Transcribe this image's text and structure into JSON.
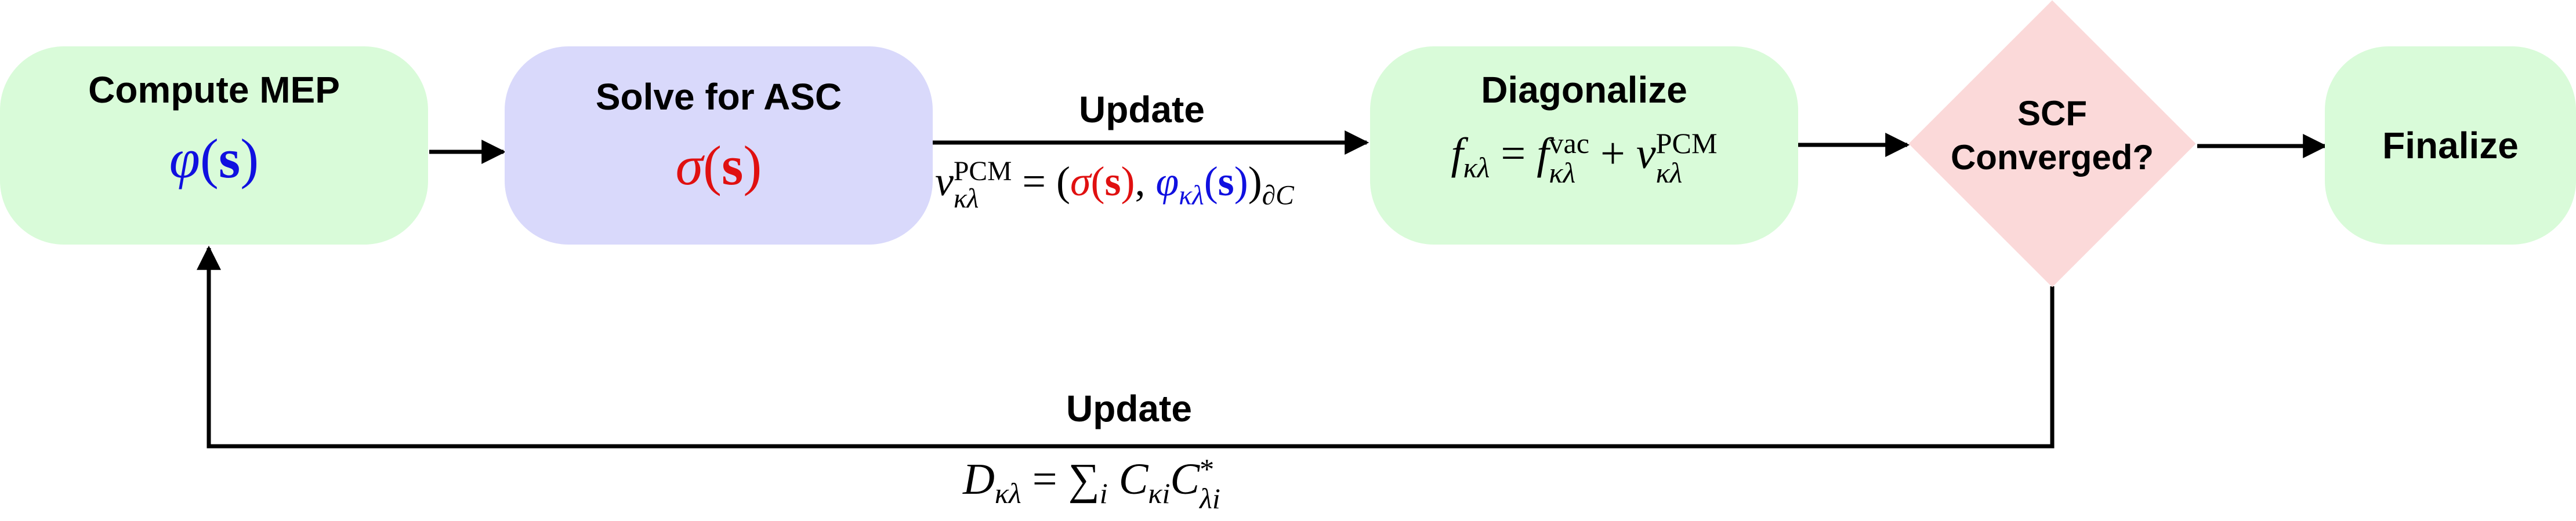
{
  "nodes": {
    "compute_mep": {
      "title": "Compute MEP",
      "formula": {
        "phi": "φ",
        "open": "(",
        "s": "s",
        "close": ")"
      },
      "fill": "#d9fbd9"
    },
    "solve_asc": {
      "title": "Solve for ASC",
      "formula": {
        "sigma": "σ",
        "open": "(",
        "s": "s",
        "close": ")"
      },
      "fill": "#d9d9fb"
    },
    "diagonalize": {
      "title": "Diagonalize",
      "formula": {
        "f": "f",
        "sub_kl": "κλ",
        "eq": " = ",
        "f2": "f",
        "sup_vac": "vac",
        "sub_kl2": "κλ",
        "plus": " + ",
        "v": "v",
        "sup_pcm": "PCM",
        "sub_kl3": "κλ"
      },
      "fill": "#d9fbd9"
    },
    "scf_converged": {
      "title_line1": "SCF",
      "title_line2": "Converged?",
      "fill": "#fbd9d9"
    },
    "finalize": {
      "title": "Finalize",
      "fill": "#d9fbd9"
    }
  },
  "edges": {
    "update_top": {
      "label": "Update",
      "formula": {
        "v": "v",
        "sup_pcm": "PCM",
        "sub_kl": "κλ",
        "eq": " = (",
        "sigma": "σ",
        "s1_open": "(",
        "s1": "s",
        "s1_close": ")",
        "comma": ", ",
        "phi": "φ",
        "sub_kl2": "κλ",
        "s2_open": "(",
        "s2": "s",
        "s2_close": ")",
        "close": ")",
        "sub_dc": "∂C"
      }
    },
    "update_bottom": {
      "label": "Update",
      "formula": {
        "D": "D",
        "sub_kl": "κλ",
        "eq": " = ",
        "sum": "∑",
        "sub_i": "i",
        "C1": " C",
        "sub_ki": "κi",
        "C2": "C",
        "sup_star": "*",
        "sub_li": "λi"
      }
    }
  },
  "colors": {
    "red": "#e01010",
    "blue": "#1010e0",
    "arrow": "#000000"
  }
}
